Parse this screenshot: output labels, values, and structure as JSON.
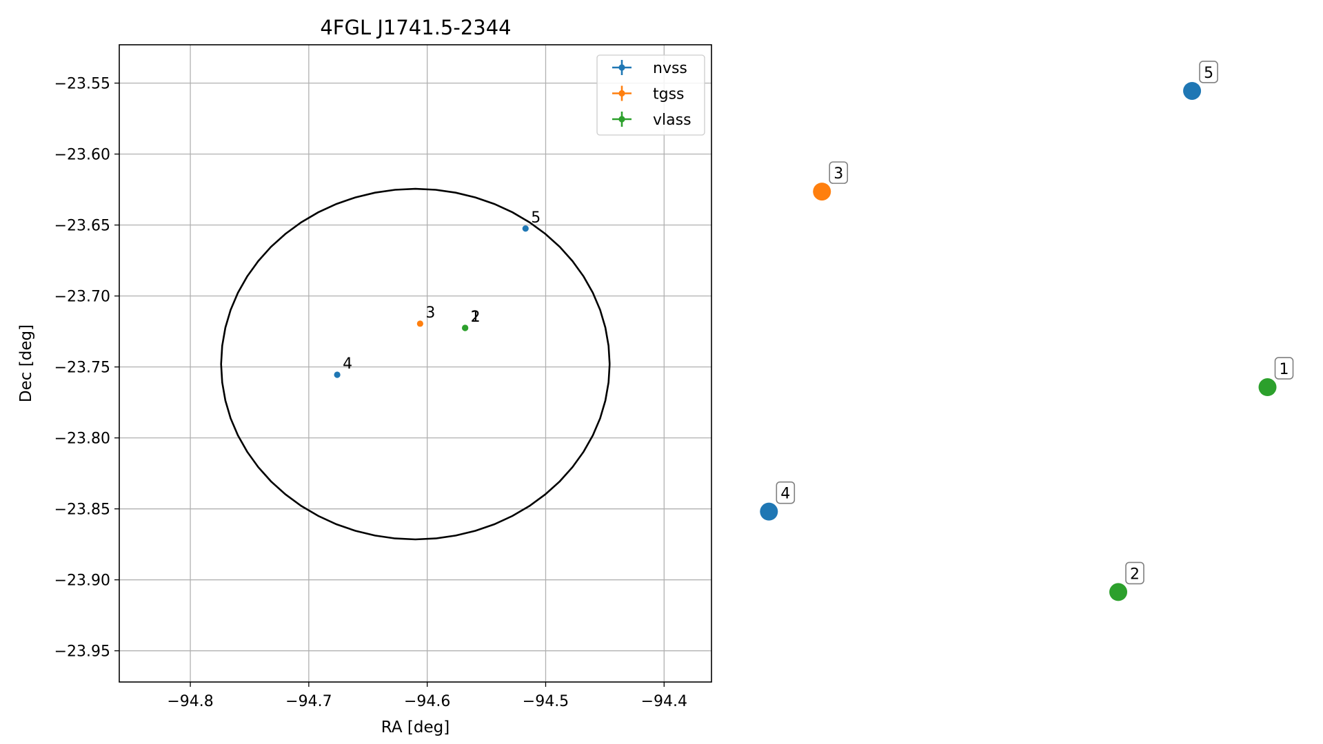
{
  "chart_data": [
    {
      "type": "scatter",
      "title": "4FGL J1741.5-2344",
      "xlabel": "RA [deg]",
      "ylabel": "Dec [deg]",
      "xlim": [
        -94.86,
        -94.36
      ],
      "ylim": [
        -23.972,
        -23.523
      ],
      "x_ticks": [
        -94.8,
        -94.7,
        -94.6,
        -94.5,
        -94.4
      ],
      "x_tick_labels": [
        "−94.8",
        "−94.7",
        "−94.6",
        "−94.5",
        "−94.4"
      ],
      "y_ticks": [
        -23.55,
        -23.6,
        -23.65,
        -23.7,
        -23.75,
        -23.8,
        -23.85,
        -23.9,
        -23.95
      ],
      "y_tick_labels": [
        "−23.55",
        "−23.60",
        "−23.65",
        "−23.70",
        "−23.75",
        "−23.80",
        "−23.85",
        "−23.90",
        "−23.95"
      ],
      "grid": true,
      "legend_position": "top-right",
      "ellipse": {
        "center": [
          -94.61,
          -23.748
        ],
        "semi_axis_ra": 0.164,
        "semi_axis_dec": 0.1235,
        "color": "#000000"
      },
      "series": [
        {
          "name": "nvss",
          "color": "#1f77b4",
          "points": [
            {
              "id": "4",
              "ra": -94.676,
              "dec": -23.7555
            },
            {
              "id": "5",
              "ra": -94.517,
              "dec": -23.6525
            }
          ]
        },
        {
          "name": "tgss",
          "color": "#ff7f0e",
          "points": [
            {
              "id": "3",
              "ra": -94.606,
              "dec": -23.7195
            }
          ]
        },
        {
          "name": "vlass",
          "color": "#2ca02c",
          "points": [
            {
              "id": "1",
              "ra": -94.568,
              "dec": -23.7225
            },
            {
              "id": "2",
              "ra": -94.568,
              "dec": -23.7225
            }
          ]
        }
      ]
    },
    {
      "type": "scatter",
      "title": "",
      "axes_visible": false,
      "points": [
        {
          "id": "5",
          "x": 0.816,
          "y": 0.956,
          "color": "#1f77b4"
        },
        {
          "id": "3",
          "x": 0.139,
          "y": 0.782,
          "color": "#ff7f0e"
        },
        {
          "id": "1",
          "x": 0.954,
          "y": 0.444,
          "color": "#2ca02c"
        },
        {
          "id": "4",
          "x": 0.042,
          "y": 0.229,
          "color": "#1f77b4"
        },
        {
          "id": "2",
          "x": 0.681,
          "y": 0.09,
          "color": "#2ca02c"
        }
      ]
    }
  ]
}
